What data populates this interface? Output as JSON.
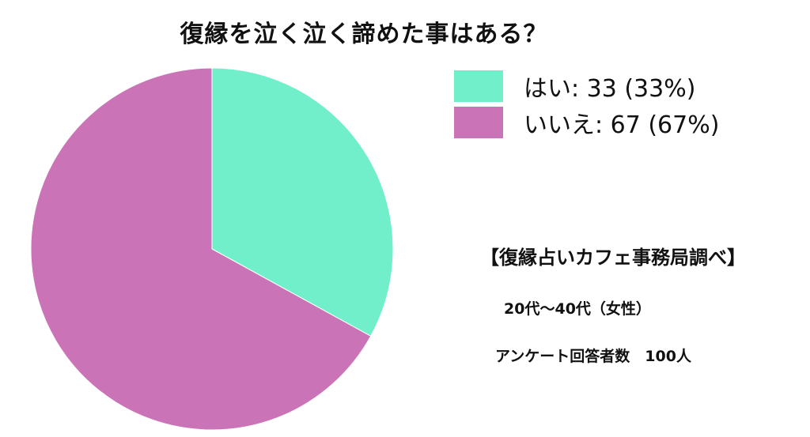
{
  "chart_data": {
    "type": "pie",
    "title": "復縁を泣く泣く諦めた事はある？",
    "categories": [
      "はい",
      "いいえ"
    ],
    "values": [
      33,
      67
    ],
    "percentages": [
      33,
      67
    ],
    "colors": [
      "#71efca",
      "#cb73b7"
    ],
    "legend_labels": [
      "はい: 33 (33%)",
      "いいえ: 67 (67%)"
    ],
    "legend_position": "top-right"
  },
  "notes": {
    "source": "【復縁占いカフェ事務局調べ】",
    "age_group": "20代〜40代（女性）",
    "respondents": "アンケート回答者数　100人"
  }
}
